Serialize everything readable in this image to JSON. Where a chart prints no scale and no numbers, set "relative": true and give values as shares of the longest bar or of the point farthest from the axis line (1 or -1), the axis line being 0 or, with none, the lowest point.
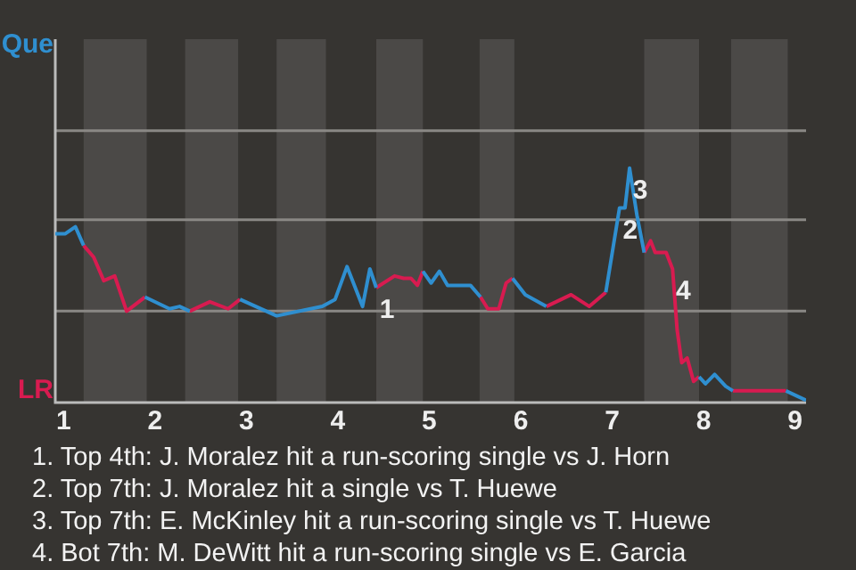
{
  "chart_data": {
    "type": "line",
    "relative": true,
    "x": [
      0.91,
      1.02,
      1.13,
      1.22,
      1.33,
      1.44,
      1.56,
      1.69,
      1.89,
      2.16,
      2.27,
      2.38,
      2.6,
      2.8,
      2.93,
      3.33,
      3.83,
      3.97,
      4.1,
      4.27,
      4.35,
      4.42,
      4.62,
      4.72,
      4.8,
      4.87,
      4.93,
      5.02,
      5.11,
      5.2,
      5.45,
      5.56,
      5.64,
      5.76,
      5.84,
      5.91,
      6.05,
      6.28,
      6.55,
      6.75,
      6.93,
      7.08,
      7.14,
      7.19,
      7.27,
      7.35,
      7.42,
      7.47,
      7.59,
      7.66,
      7.71,
      7.76,
      7.82,
      7.89,
      7.95,
      8.02,
      8.12,
      8.24,
      8.32,
      8.5,
      8.9,
      9.12
    ],
    "series": [
      {
        "color": "#2f8fd0",
        "values": [
          0.72,
          0.72,
          0.75,
          0.67,
          null,
          null,
          null,
          null,
          0.45,
          0.4,
          0.41,
          0.39,
          null,
          null,
          0.44,
          0.37,
          0.41,
          0.44,
          0.58,
          0.41,
          0.57,
          0.49,
          null,
          null,
          null,
          null,
          0.56,
          0.51,
          0.56,
          0.5,
          0.5,
          0.45,
          null,
          null,
          null,
          0.53,
          0.46,
          0.41,
          null,
          null,
          0.47,
          0.83,
          0.83,
          1,
          0.8,
          0.64,
          null,
          null,
          null,
          null,
          null,
          null,
          null,
          null,
          0.11,
          0.08,
          0.12,
          0.07,
          0.05,
          null,
          0.05,
          0.01
        ]
      },
      {
        "color": "#d81b50",
        "values": [
          null,
          null,
          null,
          0.67,
          0.62,
          0.52,
          0.54,
          0.39,
          0.45,
          null,
          null,
          0.39,
          0.43,
          0.4,
          0.44,
          null,
          null,
          null,
          null,
          null,
          null,
          0.49,
          0.54,
          0.53,
          0.53,
          0.5,
          0.56,
          null,
          null,
          null,
          null,
          0.45,
          0.4,
          0.4,
          0.51,
          0.53,
          null,
          0.41,
          0.46,
          0.41,
          0.47,
          null,
          null,
          null,
          null,
          0.64,
          0.69,
          0.64,
          0.64,
          0.57,
          0.31,
          0.17,
          0.19,
          0.09,
          0.11,
          null,
          null,
          null,
          0.05,
          0.05,
          0.05,
          null
        ]
      }
    ],
    "xlim": [
      0.91,
      9.12
    ],
    "xticks": [
      1,
      2,
      3,
      4,
      5,
      6,
      7,
      8,
      9
    ],
    "legend": false,
    "ref_lines": [
      {
        "axis": "y",
        "value": 0.39,
        "color": "#8a8885"
      },
      {
        "axis": "y",
        "value": 0.78,
        "color": "#8a8885"
      },
      {
        "axis": "y",
        "value": 1.16,
        "color": "#8a8885"
      }
    ],
    "bands": [
      {
        "axis": "x",
        "from": 1.22,
        "to": 1.91,
        "color": "#4b4947"
      },
      {
        "axis": "x",
        "from": 2.33,
        "to": 2.91,
        "color": "#4b4947"
      },
      {
        "axis": "x",
        "from": 3.33,
        "to": 3.87,
        "color": "#4b4947"
      },
      {
        "axis": "x",
        "from": 4.42,
        "to": 4.93,
        "color": "#4b4947"
      },
      {
        "axis": "x",
        "from": 5.55,
        "to": 5.93,
        "color": "#4b4947"
      },
      {
        "axis": "x",
        "from": 7.35,
        "to": 7.95,
        "color": "#4b4947"
      },
      {
        "axis": "x",
        "from": 8.3,
        "to": 8.92,
        "color": "#4b4947"
      }
    ],
    "annotations": [
      "Que",
      "LR",
      {
        "text": "1",
        "x": 4.42,
        "y": 0.49
      },
      {
        "text": "2",
        "x": 7.08,
        "y": 0.83
      },
      {
        "text": "3",
        "x": 7.19,
        "y": 1
      },
      {
        "text": "4",
        "x": 7.66,
        "y": 0.57
      },
      "1. Top 4th: J. Moralez hit a run-scoring single vs J. Horn",
      "2. Top 7th: J. Moralez hit a single vs T. Huewe",
      "3. Top 7th: E. McKinley hit a run-scoring single vs T. Huewe",
      "4. Bot 7th: M. DeWitt hit a run-scoring single vs E. Garcia"
    ]
  }
}
